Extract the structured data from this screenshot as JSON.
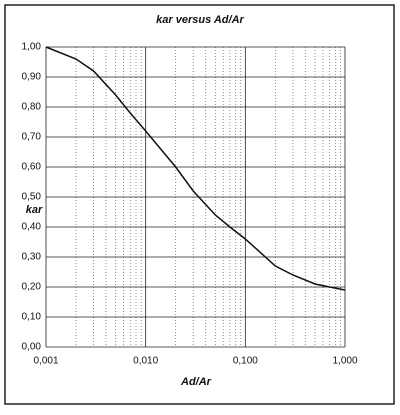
{
  "chart_data": {
    "type": "line",
    "title": "kar versus Ad/Ar",
    "xlabel": "Ad/Ar",
    "ylabel": "kar",
    "xscale": "log",
    "grid": true,
    "x": [
      0.001,
      0.002,
      0.003,
      0.005,
      0.007,
      0.01,
      0.02,
      0.03,
      0.05,
      0.07,
      0.1,
      0.2,
      0.3,
      0.5,
      0.7,
      1.0
    ],
    "series": [
      {
        "name": "kar",
        "color": "#111111",
        "values": [
          1.0,
          0.96,
          0.92,
          0.84,
          0.78,
          0.72,
          0.6,
          0.52,
          0.44,
          0.4,
          0.36,
          0.27,
          0.24,
          0.21,
          0.2,
          0.19
        ]
      }
    ],
    "xlim": [
      0.001,
      1.0
    ],
    "ylim": [
      0,
      1.0
    ],
    "xticks": [
      {
        "value": 0.001,
        "label": "0,001"
      },
      {
        "value": 0.01,
        "label": "0,010"
      },
      {
        "value": 0.1,
        "label": "0,100"
      },
      {
        "value": 1.0,
        "label": "1,000"
      }
    ],
    "xminor": [
      0.002,
      0.003,
      0.004,
      0.005,
      0.006,
      0.007,
      0.008,
      0.009,
      0.02,
      0.03,
      0.04,
      0.05,
      0.06,
      0.07,
      0.08,
      0.09,
      0.2,
      0.3,
      0.4,
      0.5,
      0.6,
      0.7,
      0.8,
      0.9
    ],
    "yticks": [
      {
        "value": 0,
        "label": "0,00"
      },
      {
        "value": 0.1,
        "label": "0,10"
      },
      {
        "value": 0.2,
        "label": "0,20"
      },
      {
        "value": 0.3,
        "label": "0,30"
      },
      {
        "value": 0.4,
        "label": "0,40"
      },
      {
        "value": 0.5,
        "label": "0,50"
      },
      {
        "value": 0.6,
        "label": "0,60"
      },
      {
        "value": 0.7,
        "label": "0,70"
      },
      {
        "value": 0.8,
        "label": "0,80"
      },
      {
        "value": 0.9,
        "label": "0,90"
      },
      {
        "value": 1.0,
        "label": "1,00"
      }
    ]
  }
}
